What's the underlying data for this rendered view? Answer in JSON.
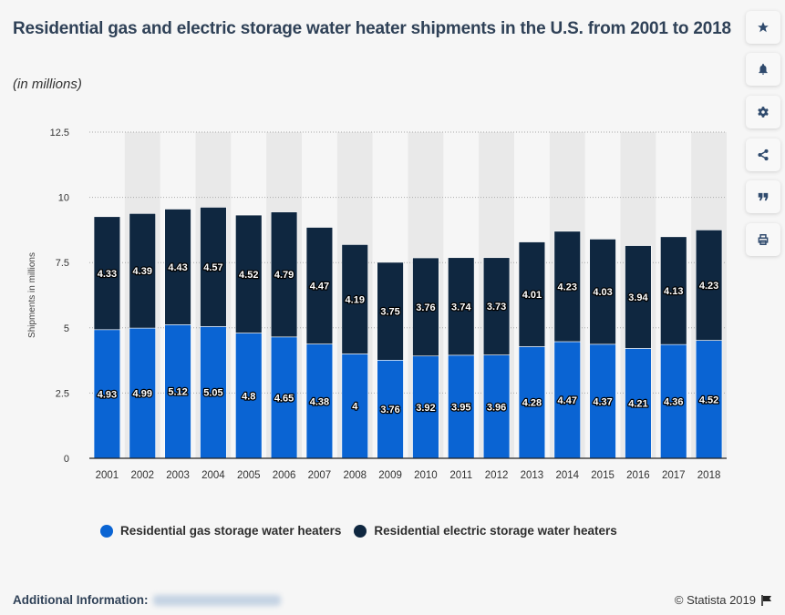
{
  "header": {
    "title": "Residential gas and electric storage water heater shipments in the U.S. from 2001 to 2018",
    "subtitle": "(in millions)"
  },
  "sidebar": {
    "buttons": [
      {
        "icon": "star-icon",
        "label": "Favorite"
      },
      {
        "icon": "bell-icon",
        "label": "Notifications"
      },
      {
        "icon": "gear-icon",
        "label": "Settings"
      },
      {
        "icon": "share-icon",
        "label": "Share"
      },
      {
        "icon": "quote-icon",
        "label": "Cite"
      },
      {
        "icon": "print-icon",
        "label": "Print"
      }
    ]
  },
  "footer": {
    "additional_info_label": "Additional Information:",
    "copyright": "© Statista 2019"
  },
  "chart_data": {
    "type": "bar",
    "stacked": true,
    "title": "Residential gas and electric storage water heater shipments in the U.S. from 2001 to 2018",
    "subtitle": "(in millions)",
    "xlabel": "",
    "ylabel": "Shipments in millions",
    "ylim": [
      0,
      12.5
    ],
    "yticks": [
      "0",
      "2.5",
      "5",
      "7.5",
      "10",
      "12.5"
    ],
    "grid": true,
    "legend_position": "bottom",
    "categories": [
      "2001",
      "2002",
      "2003",
      "2004",
      "2005",
      "2006",
      "2007",
      "2008",
      "2009",
      "2010",
      "2011",
      "2012",
      "2013",
      "2014",
      "2015",
      "2016",
      "2017",
      "2018"
    ],
    "series": [
      {
        "name": "Residential gas storage water heaters",
        "color": "#0a64d3",
        "values": [
          4.93,
          4.99,
          5.12,
          5.05,
          4.8,
          4.65,
          4.38,
          4,
          3.76,
          3.92,
          3.95,
          3.96,
          4.28,
          4.47,
          4.37,
          4.21,
          4.36,
          4.52
        ],
        "labels": [
          "4.93",
          "4.99",
          "5.12",
          "5.05",
          "4.8",
          "4.65",
          "4.38",
          "4",
          "3.76",
          "3.92",
          "3.95",
          "3.96",
          "4.28",
          "4.47",
          "4.37",
          "4.21",
          "4.36",
          "4.52"
        ]
      },
      {
        "name": "Residential electric storage water heaters",
        "color": "#0f2740",
        "values": [
          4.33,
          4.39,
          4.43,
          4.57,
          4.52,
          4.79,
          4.47,
          4.19,
          3.75,
          3.76,
          3.74,
          3.73,
          4.01,
          4.23,
          4.03,
          3.94,
          4.13,
          4.23
        ],
        "labels": [
          "4.33",
          "4.39",
          "4.43",
          "4.57",
          "4.52",
          "4.79",
          "4.47",
          "4.19",
          "3.75",
          "3.76",
          "3.74",
          "3.73",
          "4.01",
          "4.23",
          "4.03",
          "3.94",
          "4.13",
          "4.23"
        ]
      }
    ]
  }
}
